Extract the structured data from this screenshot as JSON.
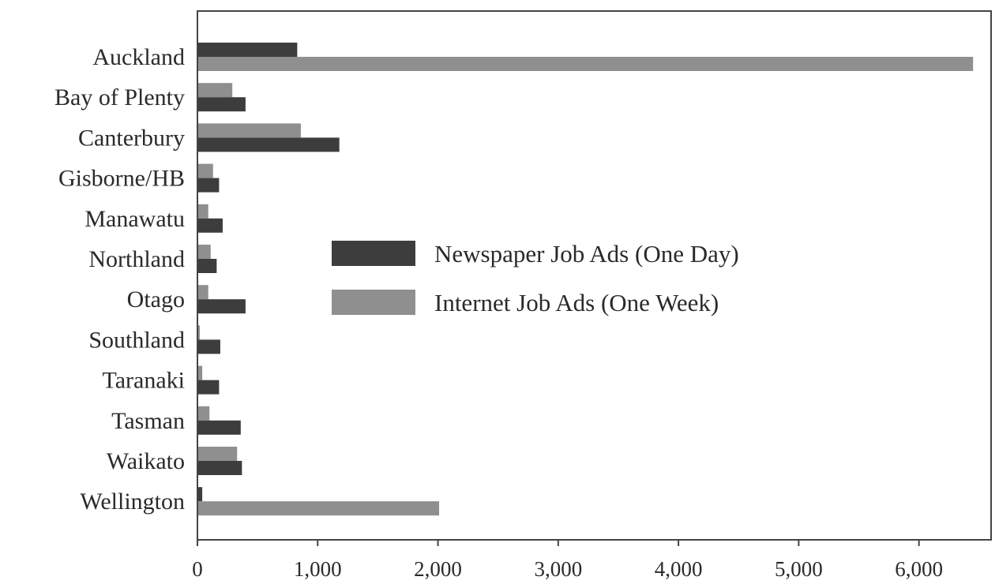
{
  "chart_data": {
    "type": "bar",
    "orientation": "horizontal",
    "categories": [
      "Auckland",
      "Bay of Plenty",
      "Canterbury",
      "Gisborne/HB",
      "Manawatu",
      "Northland",
      "Otago",
      "Southland",
      "Taranaki",
      "Tasman",
      "Waikato",
      "Wellington"
    ],
    "series": [
      {
        "name": "Newspaper Job Ads (One Day)",
        "color": "#3d3d3d",
        "values": [
          830,
          400,
          1180,
          180,
          210,
          160,
          400,
          190,
          180,
          360,
          370,
          40
        ]
      },
      {
        "name": "Internet Job Ads (One Week)",
        "color": "#8f8f8f",
        "values": [
          6450,
          290,
          860,
          130,
          90,
          110,
          90,
          20,
          40,
          100,
          330,
          2010
        ]
      }
    ],
    "xlim": [
      0,
      6600
    ],
    "xticks": [
      0,
      1000,
      2000,
      3000,
      4000,
      5000,
      6000
    ],
    "xtick_labels": [
      "0",
      "1,000",
      "2,000",
      "3,000",
      "4,000",
      "5,000",
      "6,000"
    ],
    "legend_position": "center",
    "grid": false,
    "title": "",
    "xlabel": "",
    "ylabel": ""
  }
}
